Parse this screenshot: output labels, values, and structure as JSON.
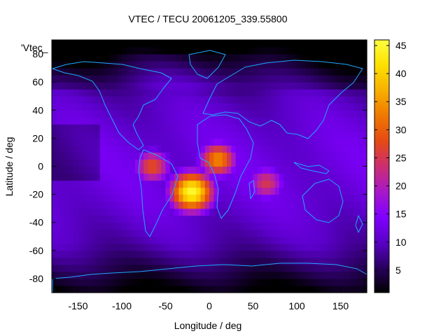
{
  "chart_data": {
    "type": "heatmap",
    "title": "VTEC / TECU 20061205_339.55800",
    "xlabel": "Longitude / deg",
    "ylabel": "Latitude / deg",
    "series_key": "'Vtec_",
    "xlim": [
      -180,
      180
    ],
    "ylim": [
      -90,
      90
    ],
    "x_ticks": [
      "-150",
      "-100",
      "-50",
      "0",
      "50",
      "100",
      "150"
    ],
    "y_ticks": [
      "-80",
      "-60",
      "-40",
      "-20",
      "0",
      "20",
      "40",
      "60",
      "80"
    ],
    "colorbar": {
      "range": [
        1,
        46
      ],
      "ticks": [
        "5",
        "10",
        "15",
        "20",
        "25",
        "30",
        "35",
        "40",
        "45"
      ],
      "palette": [
        "#000000",
        "#2a0060",
        "#5a00c8",
        "#8000ff",
        "#a818c8",
        "#cc2e70",
        "#e64a14",
        "#f07800",
        "#f8b000",
        "#fde000",
        "#ffff40"
      ]
    },
    "grid_resolution_deg": 5,
    "background_level": 12,
    "features": [
      {
        "lon": -20,
        "lat": -18,
        "peak": 45
      },
      {
        "lon": 10,
        "lat": 5,
        "peak": 34
      },
      {
        "lon": -65,
        "lat": 0,
        "peak": 28
      },
      {
        "lon": 65,
        "lat": -12,
        "peak": 25
      }
    ],
    "coastline_color": "#1fa8ff"
  }
}
